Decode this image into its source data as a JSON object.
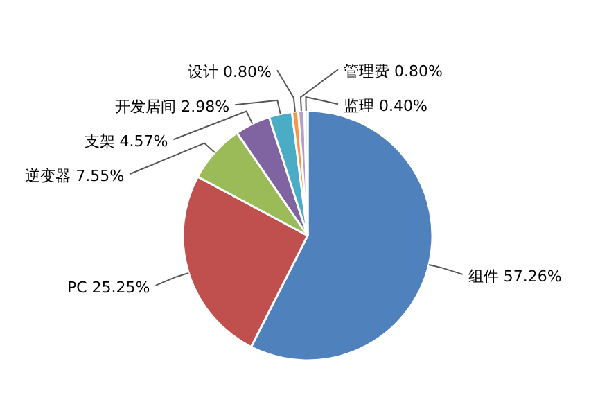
{
  "chart_data": {
    "type": "pie",
    "categories": [
      "组件",
      "PC",
      "逆变器",
      "支架",
      "开发居间",
      "设计",
      "管理费",
      "监理"
    ],
    "values": [
      57.26,
      25.25,
      7.55,
      4.57,
      2.98,
      0.8,
      0.8,
      0.4
    ],
    "value_labels": [
      "57.26%",
      "25.25%",
      "7.55%",
      "4.57%",
      "2.98%",
      "0.80%",
      "0.80%",
      "0.40%"
    ],
    "colors": [
      "#4f81bd",
      "#c0504d",
      "#9bbb59",
      "#8064a2",
      "#4bacc6",
      "#f79646",
      "#b3a2c7",
      "#d9d9d9"
    ]
  }
}
